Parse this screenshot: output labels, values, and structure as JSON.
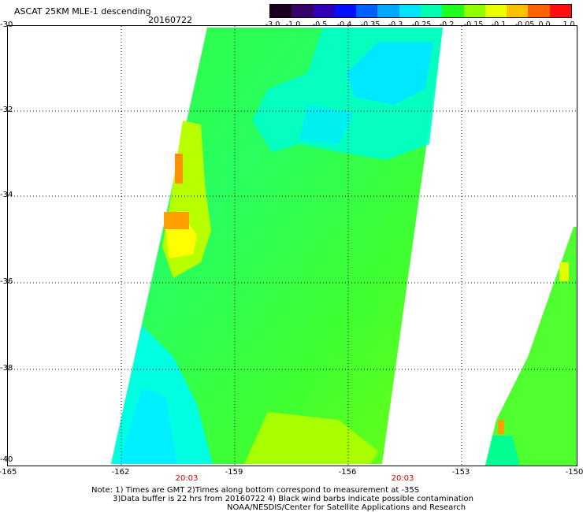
{
  "header": {
    "title": "ASCAT 25KM MLE-1 descending",
    "date": "20160722"
  },
  "colorbar": {
    "labels": [
      "-3.0",
      "-1.0",
      "-0.5",
      "-0.4",
      "-0.35",
      "-0.3",
      "-0.25",
      "-0.2",
      "-0.15",
      "-0.1",
      "-0.05",
      "0.0",
      "1.0"
    ],
    "colors": [
      "#1a0020",
      "#3a006a",
      "#3000b8",
      "#0010ff",
      "#0060ff",
      "#00a8ff",
      "#00e4ff",
      "#00ffb0",
      "#20ff20",
      "#90ff00",
      "#e8ff00",
      "#ffc000",
      "#ff6000",
      "#ff1010"
    ]
  },
  "axes": {
    "y_labels": [
      "-30",
      "-32",
      "-34",
      "-36",
      "-38",
      "-40"
    ],
    "x_labels": [
      "-165",
      "-162",
      "-159",
      "-156",
      "-153",
      "-150"
    ],
    "times": [
      "20:03",
      "20:03"
    ]
  },
  "notes": {
    "line1": "Note: 1) Times are GMT 2)Times along bottom correspond to measurement at -35S",
    "line2": "3)Data buffer is 22 hrs from 20160722 4) Black wind barbs indicate possible contamination",
    "line3": "NOAA/NESDIS/Center for Satellite Applications and Research"
  }
}
